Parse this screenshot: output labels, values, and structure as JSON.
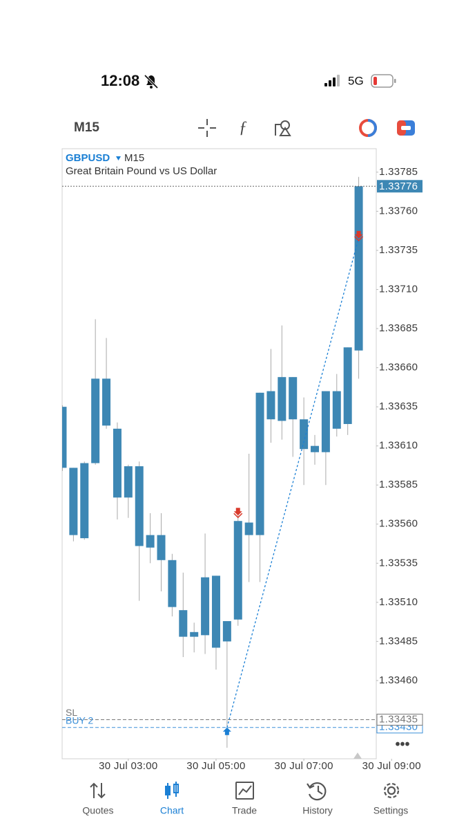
{
  "status_bar": {
    "time": "12:08",
    "network": "5G"
  },
  "toolbar": {
    "timeframe": "M15"
  },
  "chart_data": {
    "type": "candlestick",
    "symbol": "GBPUSD",
    "timeframe": "M15",
    "subtitle": "Great Britain Pound vs US Dollar",
    "color": "#3d87b4",
    "open": [
      1.33635,
      1.33596,
      1.33551,
      1.33599,
      1.33653,
      1.33621,
      1.33577,
      1.33597,
      1.33545,
      1.33553,
      1.33537,
      1.33505,
      1.33488,
      1.33489,
      1.33527,
      1.33485,
      1.33499,
      1.33561,
      1.33553,
      1.33645,
      1.33626,
      1.33654,
      1.33627,
      1.3361,
      1.33606,
      1.33645,
      1.33624,
      1.33671
    ],
    "high": [
      1.33636,
      1.33596,
      1.336,
      1.33691,
      1.33679,
      1.33625,
      1.33598,
      1.336,
      1.33567,
      1.33567,
      1.33541,
      1.33529,
      1.33497,
      1.33554,
      1.33527,
      1.33498,
      1.33568,
      1.33605,
      1.33644,
      1.33672,
      1.33687,
      1.33654,
      1.33641,
      1.33617,
      1.33645,
      1.33656,
      1.33673,
      1.33782
    ],
    "low": [
      1.33594,
      1.33549,
      1.3355,
      1.33598,
      1.33621,
      1.33563,
      1.33564,
      1.33511,
      1.33535,
      1.33517,
      1.33501,
      1.33475,
      1.33478,
      1.33477,
      1.33467,
      1.33417,
      1.33495,
      1.33523,
      1.33523,
      1.33612,
      1.33614,
      1.33603,
      1.33585,
      1.33598,
      1.33585,
      1.33616,
      1.33617,
      1.33653
    ],
    "close": [
      1.33596,
      1.33553,
      1.33599,
      1.33653,
      1.33623,
      1.33577,
      1.33597,
      1.33546,
      1.33553,
      1.33537,
      1.33507,
      1.33488,
      1.33491,
      1.33526,
      1.33481,
      1.33498,
      1.33562,
      1.33553,
      1.33644,
      1.33627,
      1.33654,
      1.33627,
      1.33608,
      1.33606,
      1.33645,
      1.33621,
      1.33673,
      1.33776
    ],
    "xlim": [
      -0.03,
      28.6
    ],
    "xticks": [
      {
        "value": 6,
        "label": "30 Jul 03:00"
      },
      {
        "value": 14,
        "label": "30 Jul 05:00"
      },
      {
        "value": 22,
        "label": "30 Jul 07:00"
      },
      {
        "value": 30,
        "label": "30 Jul 09:00"
      }
    ],
    "ylim": [
      1.3341,
      1.338
    ],
    "yticks": [
      1.33785,
      {
        "value": 1.3376,
        "label": "1.33760"
      },
      1.33735,
      {
        "value": 1.3371,
        "label": "1.33710"
      },
      1.33685,
      {
        "value": 1.3366,
        "label": "1.33660"
      },
      1.33635,
      {
        "value": 1.3361,
        "label": "1.33610"
      },
      1.33585,
      {
        "value": 1.3356,
        "label": "1.33560"
      },
      1.33535,
      {
        "value": 1.3351,
        "label": "1.33510"
      },
      1.33485,
      {
        "value": 1.3346,
        "label": "1.33460"
      }
    ],
    "grid": false,
    "last_price": 1.33776,
    "price_lines": [
      {
        "name": "BUY 2",
        "value": 1.3343,
        "value_label": "1.33430",
        "color": "#3b8fd9"
      },
      {
        "name": "SL",
        "value": 1.33435,
        "value_label": "1.33435",
        "color": "#777777"
      }
    ],
    "buy_marker": {
      "index": 15,
      "price": 1.3343
    },
    "sell_markers": [
      {
        "index": 16,
        "price": 1.33566
      },
      {
        "index": 27,
        "price": 1.33743
      }
    ]
  },
  "tab_bar": {
    "tabs": [
      "Quotes",
      "Chart",
      "Trade",
      "History",
      "Settings"
    ],
    "active": 1
  }
}
